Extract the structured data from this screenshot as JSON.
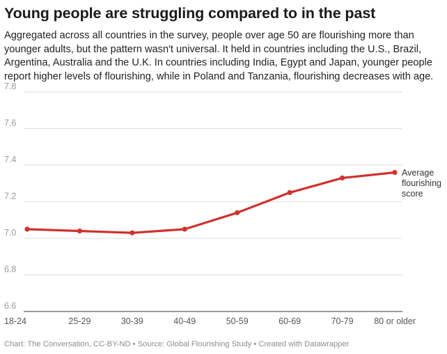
{
  "title": "Young people are struggling compared to in the past",
  "subtitle": "Aggregated across all countries in the survey, people over age 50 are flourishing more than younger adults, but the pattern wasn't universal. It held in countries including the U.S., Brazil, Argentina, Australia and the U.K. In countries including India, Egypt and Japan, younger people report higher levels of flourishing, while in Poland and Tanzania, flourishing decreases with age.",
  "footer": "Chart: The Conversation, CC-BY-ND • Source: Global Flourishing Study • Created with Datawrapper",
  "colors": {
    "line": "#d0312d",
    "grid": "#dedede",
    "axis": "#333333"
  },
  "chart_data": {
    "type": "line",
    "categories": [
      "18-24",
      "25-29",
      "30-39",
      "40-49",
      "50-59",
      "60-69",
      "70-79",
      "80 or older"
    ],
    "series": [
      {
        "name": "Average flourishing score",
        "values": [
          7.05,
          7.04,
          7.03,
          7.05,
          7.14,
          7.25,
          7.33,
          7.36
        ]
      }
    ],
    "series_label_lines": [
      "Average",
      "flourishing",
      "score"
    ],
    "yticks": [
      "7.8",
      "7.6",
      "7.4",
      "7.2",
      "7.0",
      "6.8",
      "6.6"
    ],
    "ylim": [
      6.6,
      7.8
    ],
    "grid": true,
    "title": "Young people are struggling compared to in the past",
    "xlabel": "",
    "ylabel": ""
  }
}
